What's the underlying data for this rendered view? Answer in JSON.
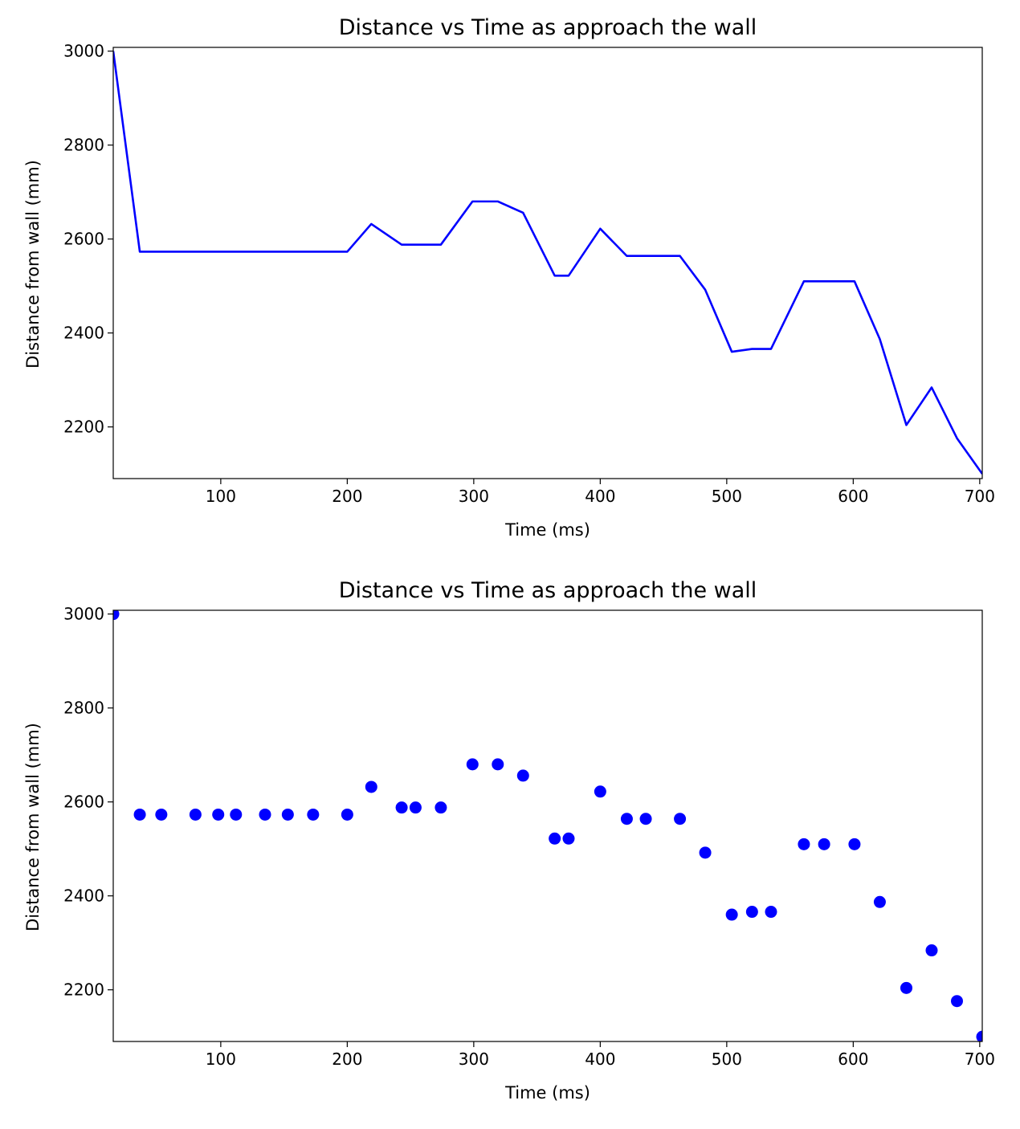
{
  "chart_data": [
    {
      "type": "line",
      "title": "Distance vs Time as approach the wall",
      "xlabel": "Time (ms)",
      "ylabel": "Distance from wall (mm)",
      "xlim": [
        15,
        702
      ],
      "ylim": [
        2090,
        3008
      ],
      "xticks": [
        100,
        200,
        300,
        400,
        500,
        600,
        700
      ],
      "yticks": [
        2200,
        2400,
        2600,
        2800,
        3000
      ],
      "grid": false,
      "color": "#0000ff",
      "series": [
        {
          "x": [
            15,
            36,
            53,
            80,
            98,
            112,
            135,
            153,
            173,
            200,
            219,
            243,
            254,
            274,
            299,
            319,
            339,
            364,
            375,
            400,
            421,
            436,
            463,
            483,
            504,
            520,
            535,
            561,
            577,
            601,
            621,
            642,
            662,
            682,
            702
          ],
          "y": [
            3000,
            2573,
            2573,
            2573,
            2573,
            2573,
            2573,
            2573,
            2573,
            2573,
            2632,
            2588,
            2588,
            2588,
            2680,
            2680,
            2656,
            2522,
            2522,
            2622,
            2564,
            2564,
            2564,
            2492,
            2360,
            2366,
            2366,
            2510,
            2510,
            2510,
            2387,
            2204,
            2284,
            2176,
            2100
          ]
        }
      ]
    },
    {
      "type": "scatter",
      "title": "Distance vs Time as approach the wall",
      "xlabel": "Time (ms)",
      "ylabel": "Distance from wall (mm)",
      "xlim": [
        15,
        702
      ],
      "ylim": [
        2090,
        3008
      ],
      "xticks": [
        100,
        200,
        300,
        400,
        500,
        600,
        700
      ],
      "yticks": [
        2200,
        2400,
        2600,
        2800,
        3000
      ],
      "grid": false,
      "color": "#0000ff",
      "series": [
        {
          "x": [
            15,
            36,
            53,
            80,
            98,
            112,
            135,
            153,
            173,
            200,
            219,
            243,
            254,
            274,
            299,
            319,
            339,
            364,
            375,
            400,
            421,
            436,
            463,
            483,
            504,
            520,
            535,
            561,
            577,
            601,
            621,
            642,
            662,
            682,
            702
          ],
          "y": [
            3000,
            2573,
            2573,
            2573,
            2573,
            2573,
            2573,
            2573,
            2573,
            2573,
            2632,
            2588,
            2588,
            2588,
            2680,
            2680,
            2656,
            2522,
            2522,
            2622,
            2564,
            2564,
            2564,
            2492,
            2360,
            2366,
            2366,
            2510,
            2510,
            2510,
            2387,
            2204,
            2284,
            2176,
            2100
          ]
        }
      ]
    }
  ]
}
